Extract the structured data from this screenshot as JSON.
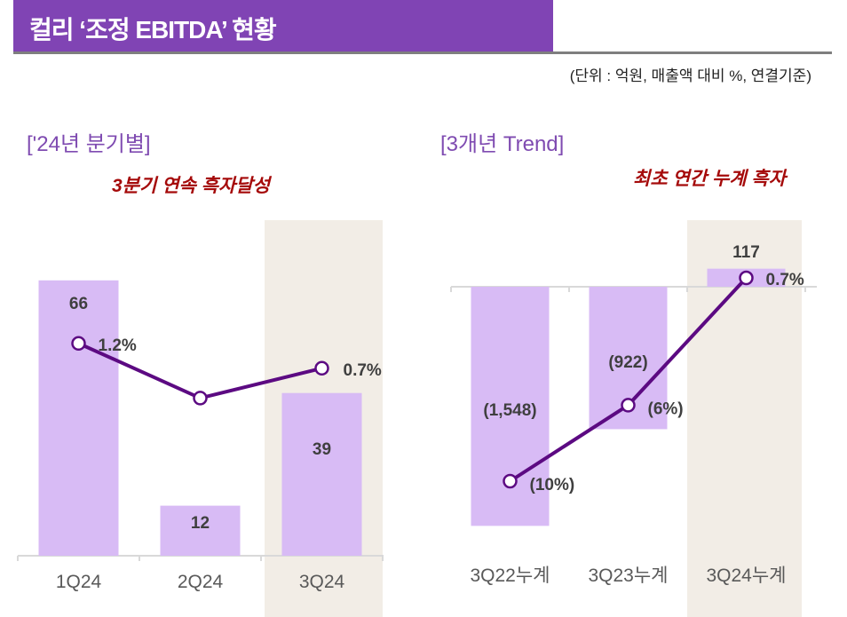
{
  "header": {
    "title": "컬리 ‘조정 EBITDA’ 현황",
    "unit_note": "(단위 : 억원, 매출액 대비 %, 연결기준)"
  },
  "colors": {
    "banner": "#8044b4",
    "bar": "#d8bbf5",
    "line": "#5c0a82",
    "highlight": "#f2ede6",
    "note": "#a50a0a",
    "section": "#7f4bb1"
  },
  "chart_data": [
    {
      "type": "bar",
      "title": "['24년 분기별]",
      "annotation": "3분기 연속 흑자달성",
      "categories": [
        "1Q24",
        "2Q24",
        "3Q24"
      ],
      "highlight_category": "3Q24",
      "series": [
        {
          "type": "bar",
          "values": [
            66,
            12,
            39
          ],
          "labels": [
            "66",
            "12",
            "39"
          ]
        },
        {
          "type": "line",
          "values": [
            1.2,
            0.1,
            0.7
          ],
          "labels": [
            "1.2%",
            "",
            "0.7%"
          ]
        }
      ],
      "grid": false
    },
    {
      "type": "bar",
      "title": "[3개년 Trend]",
      "annotation": "최초 연간 누계 흑자",
      "categories": [
        "3Q22누계",
        "3Q23누계",
        "3Q24누계"
      ],
      "highlight_category": "3Q24누계",
      "series": [
        {
          "type": "bar",
          "values": [
            -1548,
            -922,
            117
          ],
          "labels": [
            "(1,548)",
            "(922)",
            "117"
          ]
        },
        {
          "type": "line",
          "values": [
            -10,
            -6,
            0.7
          ],
          "labels": [
            "(10%)",
            "(6%)",
            "0.7%"
          ]
        }
      ],
      "grid": false
    }
  ]
}
